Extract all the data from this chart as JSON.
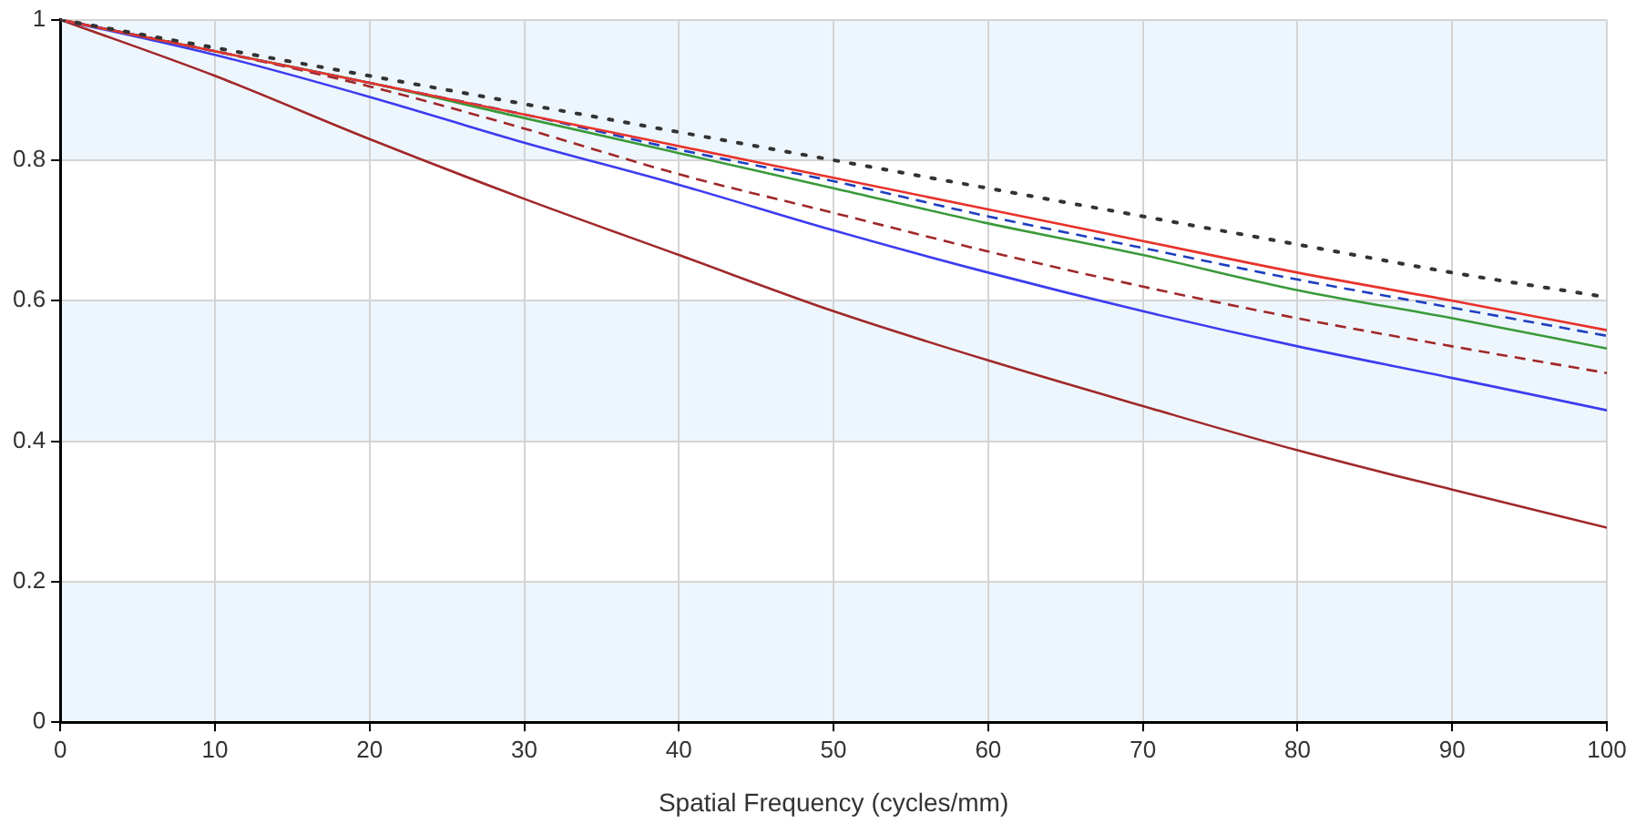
{
  "chart_data": {
    "type": "line",
    "xlabel": "Spatial Frequency (cycles/mm)",
    "x": [
      0,
      10,
      20,
      30,
      40,
      50,
      60,
      70,
      80,
      90,
      100
    ],
    "series": [
      {
        "color": "#333333",
        "line_style": "dotted",
        "values": [
          1,
          0.96,
          0.92,
          0.88,
          0.84,
          0.8,
          0.76,
          0.72,
          0.68,
          0.64,
          0.605
        ]
      },
      {
        "color": "#e8322b",
        "line_style": "solid",
        "values": [
          1,
          0.955,
          0.91,
          0.865,
          0.82,
          0.775,
          0.73,
          0.685,
          0.64,
          0.6,
          0.558
        ]
      },
      {
        "color": "#1f3fbf",
        "line_style": "dashed",
        "values": [
          1,
          0.955,
          0.91,
          0.865,
          0.815,
          0.77,
          0.72,
          0.675,
          0.63,
          0.59,
          0.55
        ]
      },
      {
        "color": "#3a9a3a",
        "line_style": "solid",
        "values": [
          1,
          0.955,
          0.91,
          0.86,
          0.81,
          0.76,
          0.71,
          0.665,
          0.615,
          0.575,
          0.532
        ]
      },
      {
        "color": "#a0282a",
        "line_style": "dashed",
        "values": [
          1,
          0.955,
          0.905,
          0.845,
          0.78,
          0.725,
          0.67,
          0.62,
          0.575,
          0.535,
          0.497
        ]
      },
      {
        "color": "#3c3cf0",
        "line_style": "solid",
        "values": [
          1,
          0.95,
          0.89,
          0.825,
          0.765,
          0.7,
          0.64,
          0.585,
          0.535,
          0.49,
          0.444
        ]
      },
      {
        "color": "#a0282a",
        "line_style": "solid",
        "values": [
          1,
          0.92,
          0.83,
          0.745,
          0.665,
          0.585,
          0.515,
          0.45,
          0.387,
          0.331,
          0.277
        ]
      }
    ],
    "xlim": [
      0,
      100
    ],
    "xticks": [
      0,
      10,
      20,
      30,
      40,
      50,
      60,
      70,
      80,
      90,
      100
    ],
    "ylim": [
      0,
      1
    ],
    "yticks": [
      0,
      0.2,
      0.4,
      0.6,
      0.8,
      1
    ],
    "grid": true,
    "marker": "none",
    "legend": false
  }
}
